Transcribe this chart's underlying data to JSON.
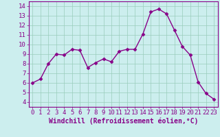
{
  "x": [
    0,
    1,
    2,
    3,
    4,
    5,
    6,
    7,
    8,
    9,
    10,
    11,
    12,
    13,
    14,
    15,
    16,
    17,
    18,
    19,
    20,
    21,
    22,
    23
  ],
  "y": [
    6.0,
    6.4,
    8.0,
    9.0,
    8.9,
    9.5,
    9.4,
    7.6,
    8.1,
    8.5,
    8.2,
    9.3,
    9.5,
    9.5,
    11.1,
    13.4,
    13.7,
    13.2,
    11.5,
    9.8,
    8.9,
    6.1,
    4.9,
    4.3
  ],
  "line_color": "#880088",
  "marker_color": "#880088",
  "bg_color": "#cceeee",
  "grid_color": "#99ccbb",
  "xlabel": "Windchill (Refroidissement éolien,°C)",
  "xlim": [
    -0.5,
    23.5
  ],
  "ylim": [
    3.5,
    14.5
  ],
  "yticks": [
    4,
    5,
    6,
    7,
    8,
    9,
    10,
    11,
    12,
    13,
    14
  ],
  "xticks": [
    0,
    1,
    2,
    3,
    4,
    5,
    6,
    7,
    8,
    9,
    10,
    11,
    12,
    13,
    14,
    15,
    16,
    17,
    18,
    19,
    20,
    21,
    22,
    23
  ],
  "tick_label_color": "#880088",
  "axis_color": "#880088",
  "font_size": 6.5,
  "xlabel_fontsize": 7.0,
  "marker_size": 2.5,
  "line_width": 1.0
}
